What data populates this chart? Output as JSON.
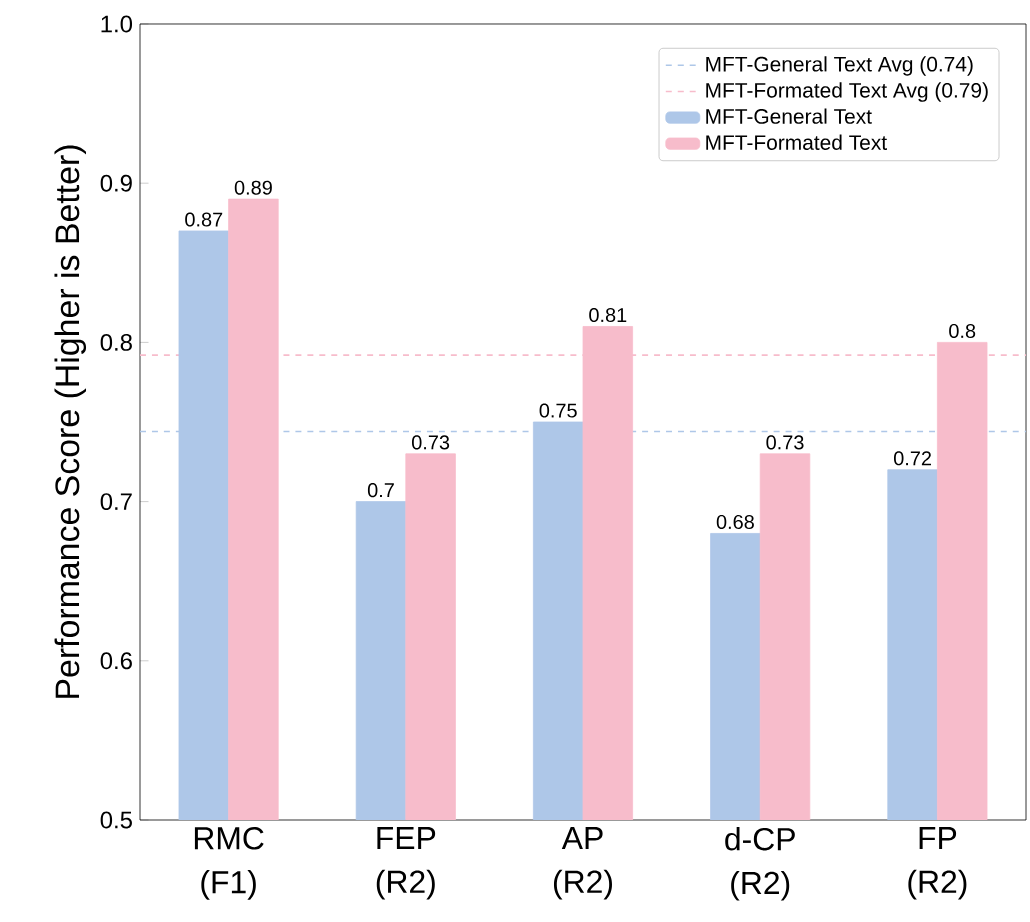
{
  "chart_data": {
    "type": "bar",
    "ylabel": "Performance Score (Higher is Better)",
    "categories": [
      "RMC (F1)",
      "FEP (R2)",
      "AP (R2)",
      "d-CP (R2)",
      "FP (R2)"
    ],
    "series": [
      {
        "name": "MFT-General Text",
        "color": "#aec7e8",
        "values": [
          0.87,
          0.7,
          0.75,
          0.68,
          0.72
        ]
      },
      {
        "name": "MFT-Formated Text",
        "color": "#f7bccb",
        "values": [
          0.89,
          0.73,
          0.81,
          0.73,
          0.8
        ]
      }
    ],
    "ref_lines": [
      {
        "axis": "y",
        "value": 0.744,
        "label": "MFT-General Text Avg (0.74)",
        "color": "#aec7e8",
        "line_style": "dashed"
      },
      {
        "axis": "y",
        "value": 0.792,
        "label": "MFT-Formated Text Avg (0.79)",
        "color": "#f7bccb",
        "line_style": "dashed"
      }
    ],
    "ylim": [
      0.5,
      1.0
    ],
    "yticks": [
      0.5,
      0.6,
      0.7,
      0.8,
      0.9,
      {
        "value": 1.0,
        "label": "1.0"
      }
    ],
    "data_labels": true,
    "legend": "top right",
    "grid": false
  }
}
